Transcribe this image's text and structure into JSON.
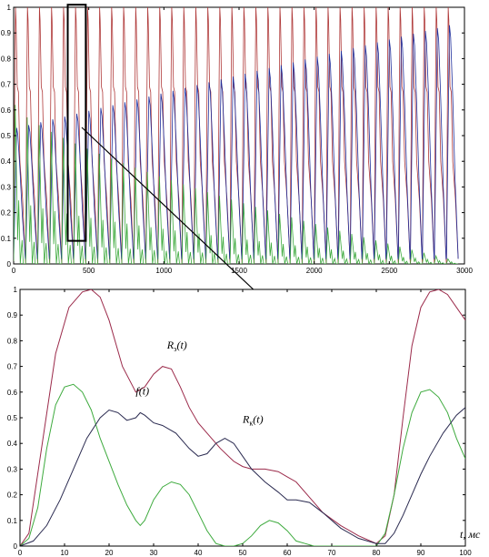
{
  "chart_data": [
    {
      "type": "line",
      "xlim": [
        0,
        3000
      ],
      "ylim": [
        0,
        1
      ],
      "xticks": [
        0,
        500,
        1000,
        1500,
        2000,
        2500,
        3000
      ],
      "yticks": [
        0,
        0.1,
        0.2,
        0.3,
        0.4,
        0.5,
        0.6,
        0.7,
        0.8,
        0.9,
        1
      ],
      "grid": false,
      "period_ms": 80,
      "cycles": 37,
      "series": [
        {
          "color": "#b03a3a",
          "peak_start": 1.0,
          "peak_end": 1.0,
          "shoulder": 0.69
        },
        {
          "color": "#1f2f9c",
          "peak_start": 0.53,
          "peak_end": 0.93
        },
        {
          "color": "#3daa3d",
          "peak_start": 0.62,
          "peak_end": 0.02
        }
      ],
      "highlight": {
        "x_range": [
          360,
          480
        ],
        "y_range": [
          0.09,
          1.01
        ]
      }
    },
    {
      "type": "line",
      "xlim": [
        0,
        100
      ],
      "ylim": [
        0,
        1
      ],
      "xticks": [
        0,
        10,
        20,
        30,
        40,
        50,
        60,
        70,
        80,
        90,
        100
      ],
      "yticks": [
        0,
        0.1,
        0.2,
        0.3,
        0.4,
        0.5,
        0.6,
        0.7,
        0.8,
        0.9,
        1
      ],
      "grid": false,
      "axis_unit_label": "t, мс",
      "series": [
        {
          "label": "R_э(t)",
          "color": "#9b2a4a",
          "x": [
            0,
            2,
            5,
            8,
            11,
            14,
            16,
            18,
            20,
            23,
            26,
            28,
            30,
            32,
            34,
            36,
            38,
            40,
            42,
            45,
            48,
            50,
            52,
            55,
            58,
            60,
            62,
            65,
            68,
            72,
            76,
            80,
            82,
            84,
            86,
            88,
            90,
            92,
            94,
            96,
            98,
            100
          ],
          "y": [
            0,
            0.05,
            0.4,
            0.75,
            0.93,
            0.99,
            1.0,
            0.97,
            0.88,
            0.7,
            0.6,
            0.62,
            0.67,
            0.7,
            0.69,
            0.62,
            0.54,
            0.48,
            0.44,
            0.38,
            0.33,
            0.31,
            0.3,
            0.3,
            0.29,
            0.27,
            0.25,
            0.19,
            0.13,
            0.08,
            0.04,
            0.01,
            0.04,
            0.2,
            0.5,
            0.78,
            0.93,
            0.99,
            1.0,
            0.98,
            0.93,
            0.88
          ]
        },
        {
          "label": "f(t)",
          "color": "#3daa3d",
          "x": [
            0,
            2,
            4,
            6,
            8,
            10,
            12,
            14,
            16,
            18,
            20,
            22,
            24,
            26,
            27,
            28,
            30,
            32,
            34,
            36,
            38,
            40,
            42,
            44,
            46,
            48,
            50,
            52,
            54,
            56,
            58,
            60,
            62,
            64,
            66,
            68,
            70,
            72,
            76,
            80,
            82,
            84,
            86,
            88,
            90,
            92,
            94,
            96,
            98,
            100
          ],
          "y": [
            0,
            0.03,
            0.15,
            0.38,
            0.55,
            0.62,
            0.63,
            0.6,
            0.53,
            0.42,
            0.33,
            0.24,
            0.16,
            0.1,
            0.08,
            0.1,
            0.18,
            0.23,
            0.25,
            0.24,
            0.2,
            0.13,
            0.06,
            0.01,
            0,
            0,
            0.01,
            0.04,
            0.08,
            0.1,
            0.09,
            0.06,
            0.02,
            0.01,
            0,
            0,
            0,
            0,
            0,
            0,
            0.05,
            0.2,
            0.38,
            0.52,
            0.6,
            0.61,
            0.58,
            0.52,
            0.42,
            0.34
          ]
        },
        {
          "label": "R_к(t)",
          "color": "#2a2a50",
          "x": [
            0,
            3,
            6,
            9,
            12,
            15,
            18,
            20,
            22,
            24,
            26,
            27,
            28,
            30,
            32,
            35,
            38,
            40,
            42,
            44,
            46,
            48,
            50,
            52,
            55,
            58,
            60,
            62,
            65,
            68,
            72,
            76,
            80,
            82,
            84,
            86,
            88,
            90,
            92,
            95,
            98,
            100
          ],
          "y": [
            0,
            0.02,
            0.08,
            0.18,
            0.3,
            0.42,
            0.5,
            0.53,
            0.52,
            0.49,
            0.5,
            0.52,
            0.51,
            0.48,
            0.47,
            0.44,
            0.38,
            0.35,
            0.36,
            0.4,
            0.42,
            0.4,
            0.35,
            0.3,
            0.25,
            0.21,
            0.18,
            0.18,
            0.17,
            0.13,
            0.07,
            0.03,
            0.01,
            0.01,
            0.05,
            0.12,
            0.2,
            0.28,
            0.35,
            0.44,
            0.51,
            0.54
          ]
        }
      ],
      "annotations": [
        {
          "text": "R",
          "sub": "э",
          "rest": "(t)",
          "x": 33,
          "y": 0.77
        },
        {
          "text": "f",
          "sub": "",
          "rest": "(t)",
          "x": 26,
          "y": 0.59
        },
        {
          "text": "R",
          "sub": "к",
          "rest": "(t)",
          "x": 50,
          "y": 0.48
        }
      ]
    }
  ]
}
